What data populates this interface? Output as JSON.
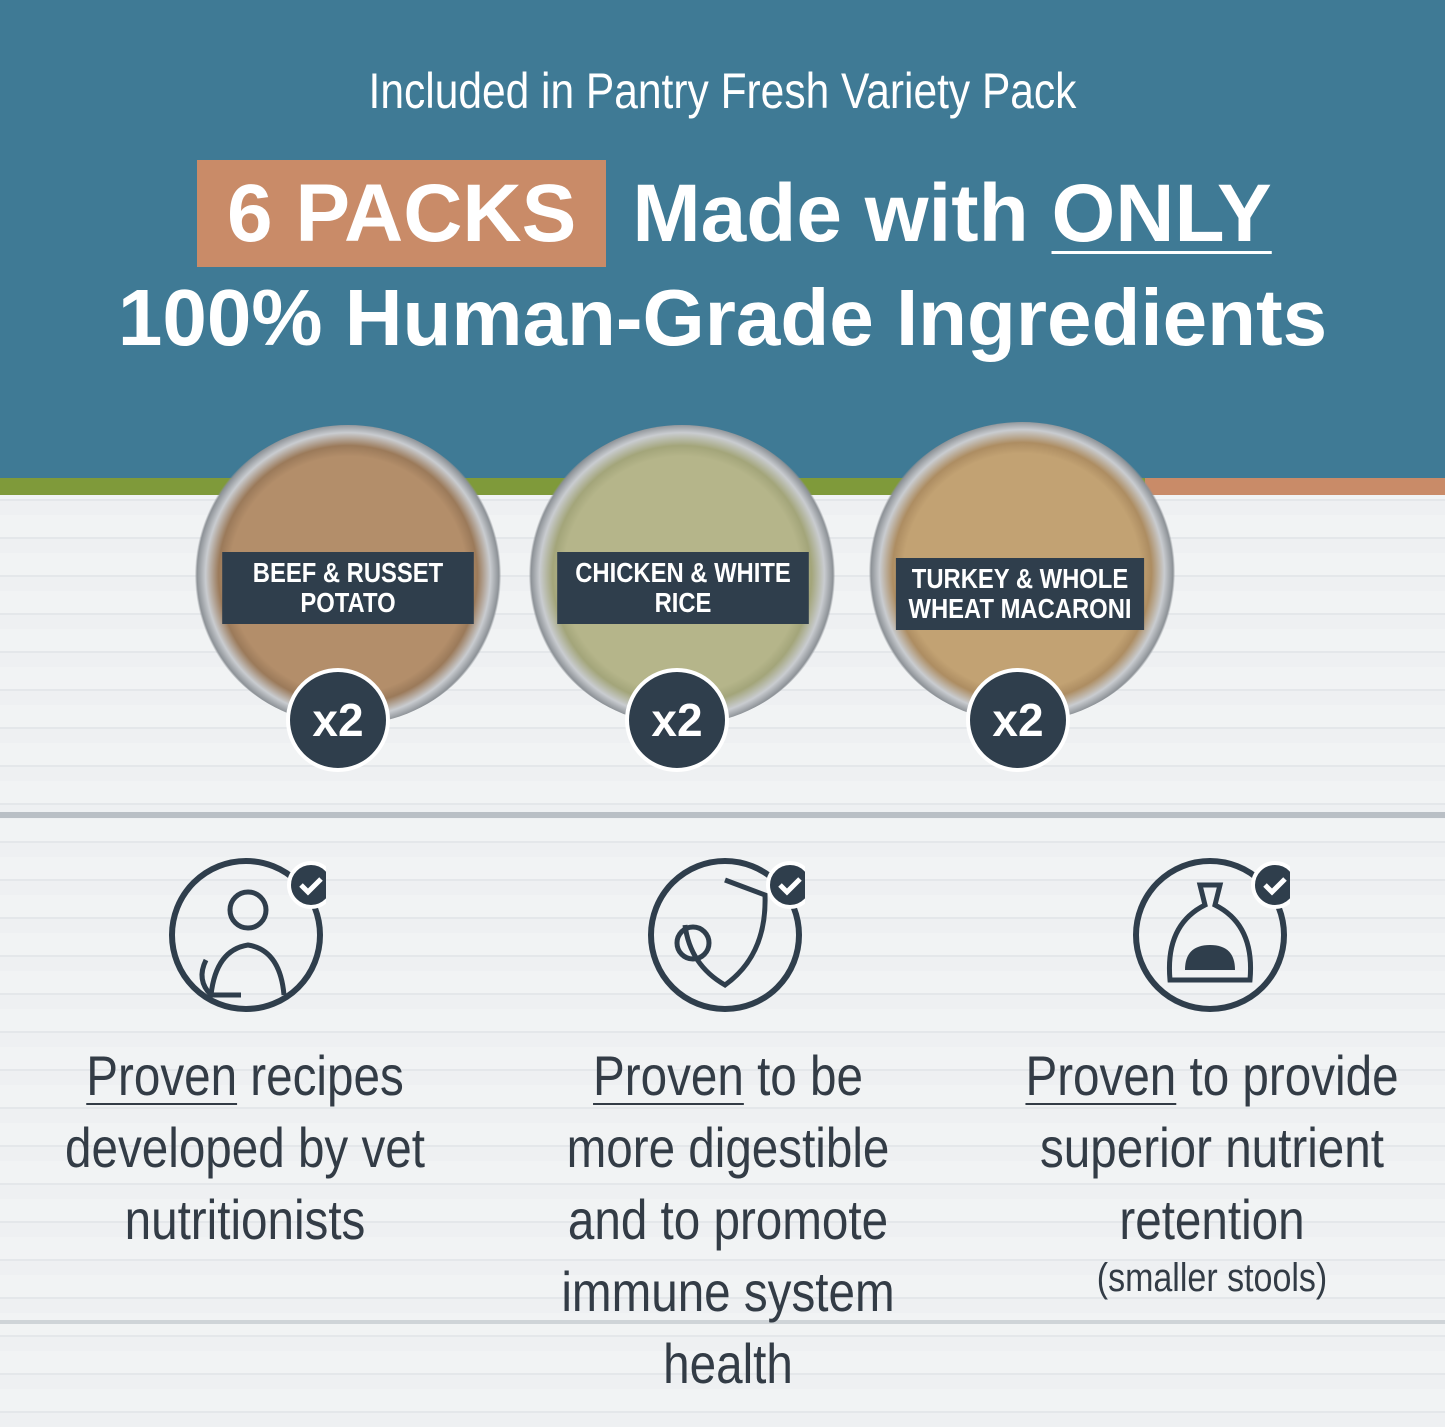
{
  "header": {
    "subtitle": "Included in Pantry Fresh Variety Pack",
    "badge": "6 PACKS",
    "line1_pre": "Made with ",
    "line1_emph": "ONLY",
    "line2": "100% Human-Grade Ingredients"
  },
  "colors": {
    "blue": "#3f7a95",
    "green": "#7f9a3a",
    "orange": "#c98b68",
    "navy": "#2f3e4c"
  },
  "recipes": [
    {
      "label": "BEEF & RUSSET POTATO",
      "count": "x2",
      "food_color": "#a07a5a"
    },
    {
      "label": "CHICKEN & WHITE RICE",
      "count": "x2",
      "food_color": "#b5b58a"
    },
    {
      "label": "TURKEY & WHOLE WHEAT MACARONI",
      "count": "x2",
      "food_color": "#c2a273"
    }
  ],
  "benefits": [
    {
      "icon": "vet-with-dog-icon",
      "emph": "Proven",
      "rest": " recipes developed by vet nutritionists",
      "note": ""
    },
    {
      "icon": "shield-virus-icon",
      "emph": "Proven",
      "rest": " to be more digestible and to promote immune system health",
      "note": ""
    },
    {
      "icon": "waste-bag-icon",
      "emph": "Proven",
      "rest": " to provide superior nutrient retention",
      "note": "(smaller stools)"
    }
  ]
}
